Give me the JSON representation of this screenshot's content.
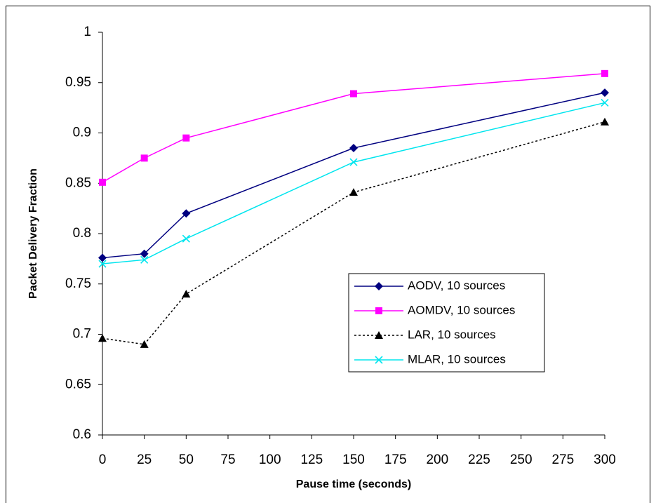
{
  "chart_data": {
    "type": "line",
    "x_label": "Pause time (seconds)",
    "y_label": "Packet Delivery Fraction",
    "x": [
      0,
      25,
      50,
      150,
      300
    ],
    "series": [
      {
        "name": "AODV, 10 sources",
        "color": "#000080",
        "marker": "diamond",
        "line_style": "solid",
        "values": [
          0.776,
          0.78,
          0.82,
          0.885,
          0.94
        ]
      },
      {
        "name": "AOMDV, 10 sources",
        "color": "#ff00ff",
        "marker": "square",
        "line_style": "solid",
        "values": [
          0.851,
          0.875,
          0.895,
          0.939,
          0.959
        ]
      },
      {
        "name": "LAR, 10 sources",
        "color": "#000000",
        "marker": "triangle",
        "line_style": "dotted",
        "values": [
          0.696,
          0.69,
          0.74,
          0.841,
          0.911
        ]
      },
      {
        "name": "MLAR, 10 sources",
        "color": "#00e5ee",
        "marker": "x",
        "line_style": "solid",
        "values": [
          0.77,
          0.774,
          0.795,
          0.871,
          0.93
        ]
      }
    ],
    "xlim": [
      0,
      300
    ],
    "xticks": [
      0,
      25,
      50,
      75,
      100,
      125,
      150,
      175,
      200,
      225,
      250,
      275,
      300
    ],
    "ylim": [
      0.6,
      1
    ],
    "yticks": [
      0.6,
      0.65,
      0.7,
      0.75,
      0.8,
      0.85,
      0.9,
      0.95,
      1
    ],
    "grid": false,
    "legend": "center-right"
  }
}
